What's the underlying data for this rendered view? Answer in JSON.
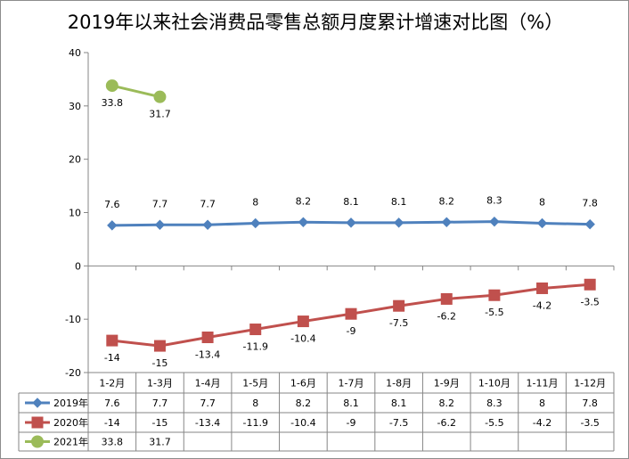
{
  "chart_data": {
    "type": "line",
    "title": "2019年以来社会消费品零售总额月度累计增速对比图（%）",
    "categories": [
      "1-2月",
      "1-3月",
      "1-4月",
      "1-5月",
      "1-6月",
      "1-7月",
      "1-8月",
      "1-9月",
      "1-10月",
      "1-11月",
      "1-12月"
    ],
    "ylim": [
      -20,
      40
    ],
    "yticks": [
      -20,
      -10,
      0,
      10,
      20,
      30,
      40
    ],
    "grid": false,
    "legend": "data-table",
    "series": [
      {
        "name": "2019年",
        "color": "#4f81bd",
        "marker": "diamond",
        "values": [
          7.6,
          7.7,
          7.7,
          8,
          8.2,
          8.1,
          8.1,
          8.2,
          8.3,
          8,
          7.8
        ],
        "labels": [
          "7.6",
          "7.7",
          "7.7",
          "8",
          "8.2",
          "8.1",
          "8.1",
          "8.2",
          "8.3",
          "8",
          "7.8"
        ],
        "label_position": "above"
      },
      {
        "name": "2020年",
        "color": "#c0504d",
        "marker": "square",
        "values": [
          -14,
          -15,
          -13.4,
          -11.9,
          -10.4,
          -9,
          -7.5,
          -6.2,
          -5.5,
          -4.2,
          -3.5
        ],
        "labels": [
          "-14",
          "-15",
          "-13.4",
          "-11.9",
          "-10.4",
          "-9",
          "-7.5",
          "-6.2",
          "-5.5",
          "-4.2",
          "-3.5"
        ],
        "label_position": "below"
      },
      {
        "name": "2021年",
        "color": "#9bbb59",
        "marker": "circle",
        "values": [
          33.8,
          31.7,
          null,
          null,
          null,
          null,
          null,
          null,
          null,
          null,
          null
        ],
        "labels": [
          "33.8",
          "31.7",
          "",
          "",
          "",
          "",
          "",
          "",
          "",
          "",
          ""
        ],
        "label_position": "below"
      }
    ]
  }
}
